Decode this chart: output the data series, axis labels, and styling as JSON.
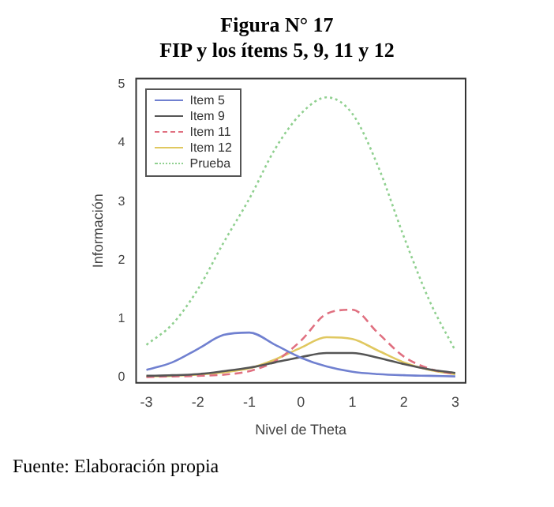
{
  "chart_data": {
    "type": "line",
    "title": "Figura N° 17",
    "subtitle": "FIP y los ítems 5, 9, 11 y 12",
    "xlabel": "Nivel de Theta",
    "ylabel": "Información",
    "x": [
      -3,
      -2.5,
      -2,
      -1.5,
      -1,
      -0.5,
      0,
      0.5,
      1,
      1.5,
      2,
      2.5,
      3
    ],
    "series": [
      {
        "name": "Item 5",
        "color": "#7080d0",
        "line_style": "solid",
        "values": [
          0.12,
          0.25,
          0.48,
          0.72,
          0.76,
          0.55,
          0.33,
          0.18,
          0.09,
          0.05,
          0.03,
          0.02,
          0.01
        ]
      },
      {
        "name": "Item 9",
        "color": "#555555",
        "line_style": "solid",
        "values": [
          0.02,
          0.03,
          0.05,
          0.1,
          0.16,
          0.25,
          0.34,
          0.41,
          0.41,
          0.33,
          0.22,
          0.13,
          0.07
        ]
      },
      {
        "name": "Item 11",
        "color": "#e07080",
        "line_style": "dashed",
        "values": [
          0,
          0.01,
          0.02,
          0.04,
          0.1,
          0.27,
          0.62,
          1.08,
          1.15,
          0.75,
          0.35,
          0.14,
          0.05
        ]
      },
      {
        "name": "Item 12",
        "color": "#e0c860",
        "line_style": "solid",
        "values": [
          0.01,
          0.02,
          0.04,
          0.08,
          0.15,
          0.3,
          0.5,
          0.68,
          0.65,
          0.45,
          0.25,
          0.12,
          0.05
        ]
      },
      {
        "name": "Prueba",
        "color": "#90d090",
        "line_style": "dotted",
        "values": [
          0.55,
          0.9,
          1.5,
          2.3,
          3.05,
          3.9,
          4.5,
          4.78,
          4.5,
          3.6,
          2.4,
          1.3,
          0.45
        ]
      }
    ],
    "xlim": [
      -3.2,
      3.2
    ],
    "xticks": [
      -3,
      -2,
      -1,
      0,
      1,
      2,
      3
    ],
    "ylim": [
      -0.1,
      5.1
    ],
    "yticks": [
      0,
      1,
      2,
      3,
      4,
      5
    ],
    "grid": false,
    "legend": "top left",
    "marker": "none",
    "annotations": [
      "Fuente: Elaboración propia"
    ]
  }
}
